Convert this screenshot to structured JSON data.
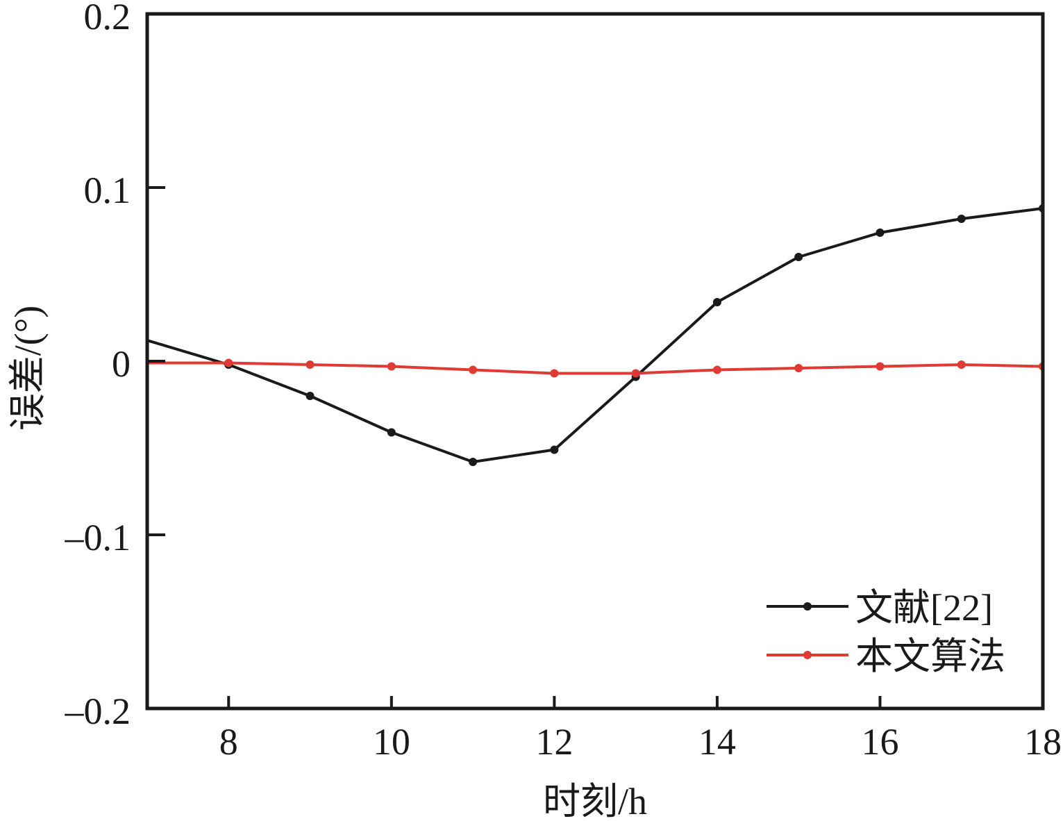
{
  "chart_data": {
    "type": "line",
    "title": "",
    "xlabel": "时刻/h",
    "ylabel": "误差/(°)",
    "xlim": [
      7,
      18
    ],
    "ylim": [
      -0.2,
      0.2
    ],
    "xticks": [
      8,
      10,
      12,
      14,
      16,
      18
    ],
    "xtick_labels": [
      "8",
      "10",
      "12",
      "14",
      "16",
      "18"
    ],
    "yticks": [
      -0.2,
      -0.1,
      0,
      0.1,
      0.2
    ],
    "ytick_labels": [
      "–0.2",
      "–0.1",
      "0",
      "0.1",
      "0.2"
    ],
    "grid": false,
    "legend_position": "bottom-right",
    "series": [
      {
        "name": "文献[22]",
        "color": "#1a1a1a",
        "x": [
          7,
          8,
          9,
          10,
          11,
          12,
          13,
          14,
          15,
          16,
          17,
          18
        ],
        "y": [
          0.012,
          -0.002,
          -0.02,
          -0.041,
          -0.058,
          -0.051,
          -0.009,
          0.034,
          0.06,
          0.074,
          0.082,
          0.088
        ]
      },
      {
        "name": "本文算法",
        "color": "#e03a35",
        "x": [
          7,
          8,
          9,
          10,
          11,
          12,
          13,
          14,
          15,
          16,
          17,
          18
        ],
        "y": [
          -0.001,
          -0.001,
          -0.002,
          -0.003,
          -0.005,
          -0.007,
          -0.007,
          -0.005,
          -0.004,
          -0.003,
          -0.002,
          -0.003
        ]
      }
    ]
  }
}
